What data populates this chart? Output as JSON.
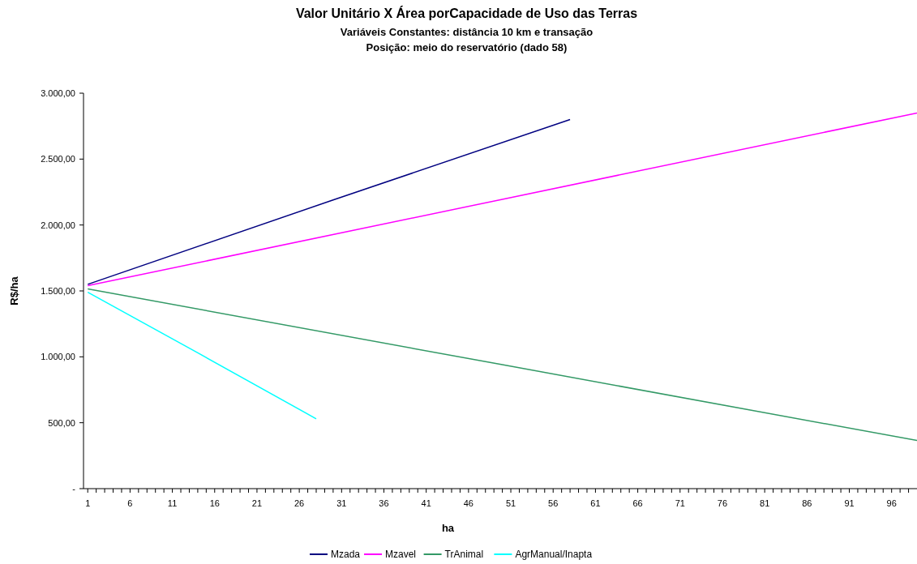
{
  "chart_data": {
    "type": "line",
    "title": "Valor Unitário X Área porCapacidade de Uso das Terras",
    "subtitle": "Variáveis Constantes: distância 10 km e transação\nPosição: meio do reservatório (dado 58)",
    "xlabel": "ha",
    "ylabel": "R$/ha",
    "xlim": [
      0.5,
      99
    ],
    "ylim": [
      0,
      3000
    ],
    "yticks": [
      {
        "value": 0,
        "label": "-"
      },
      {
        "value": 500,
        "label": "500,00"
      },
      {
        "value": 1000,
        "label": "1.000,00"
      },
      {
        "value": 1500,
        "label": "1.500,00"
      },
      {
        "value": 2000,
        "label": "2.000,00"
      },
      {
        "value": 2500,
        "label": "2.500,00"
      },
      {
        "value": 3000,
        "label": "3.000,00"
      }
    ],
    "xticks": [
      1,
      {
        "value": 2,
        "label": null
      },
      {
        "value": 3,
        "label": null
      },
      {
        "value": 4,
        "label": null
      },
      {
        "value": 5,
        "label": null
      },
      6,
      {
        "value": 7,
        "label": null
      },
      {
        "value": 8,
        "label": null
      },
      {
        "value": 9,
        "label": null
      },
      {
        "value": 10,
        "label": null
      },
      11,
      {
        "value": 12,
        "label": null
      },
      {
        "value": 13,
        "label": null
      },
      {
        "value": 14,
        "label": null
      },
      {
        "value": 15,
        "label": null
      },
      16,
      {
        "value": 17,
        "label": null
      },
      {
        "value": 18,
        "label": null
      },
      {
        "value": 19,
        "label": null
      },
      {
        "value": 20,
        "label": null
      },
      21,
      {
        "value": 22,
        "label": null
      },
      {
        "value": 23,
        "label": null
      },
      {
        "value": 24,
        "label": null
      },
      {
        "value": 25,
        "label": null
      },
      26,
      {
        "value": 27,
        "label": null
      },
      {
        "value": 28,
        "label": null
      },
      {
        "value": 29,
        "label": null
      },
      {
        "value": 30,
        "label": null
      },
      31,
      {
        "value": 32,
        "label": null
      },
      {
        "value": 33,
        "label": null
      },
      {
        "value": 34,
        "label": null
      },
      {
        "value": 35,
        "label": null
      },
      36,
      {
        "value": 37,
        "label": null
      },
      {
        "value": 38,
        "label": null
      },
      {
        "value": 39,
        "label": null
      },
      {
        "value": 40,
        "label": null
      },
      41,
      {
        "value": 42,
        "label": null
      },
      {
        "value": 43,
        "label": null
      },
      {
        "value": 44,
        "label": null
      },
      {
        "value": 45,
        "label": null
      },
      46,
      {
        "value": 47,
        "label": null
      },
      {
        "value": 48,
        "label": null
      },
      {
        "value": 49,
        "label": null
      },
      {
        "value": 50,
        "label": null
      },
      51,
      {
        "value": 52,
        "label": null
      },
      {
        "value": 53,
        "label": null
      },
      {
        "value": 54,
        "label": null
      },
      {
        "value": 55,
        "label": null
      },
      56,
      {
        "value": 57,
        "label": null
      },
      {
        "value": 58,
        "label": null
      },
      {
        "value": 59,
        "label": null
      },
      {
        "value": 60,
        "label": null
      },
      61,
      {
        "value": 62,
        "label": null
      },
      {
        "value": 63,
        "label": null
      },
      {
        "value": 64,
        "label": null
      },
      {
        "value": 65,
        "label": null
      },
      66,
      {
        "value": 67,
        "label": null
      },
      {
        "value": 68,
        "label": null
      },
      {
        "value": 69,
        "label": null
      },
      {
        "value": 70,
        "label": null
      },
      71,
      {
        "value": 72,
        "label": null
      },
      {
        "value": 73,
        "label": null
      },
      {
        "value": 74,
        "label": null
      },
      {
        "value": 75,
        "label": null
      },
      76,
      {
        "value": 77,
        "label": null
      },
      {
        "value": 78,
        "label": null
      },
      {
        "value": 79,
        "label": null
      },
      {
        "value": 80,
        "label": null
      },
      81,
      {
        "value": 82,
        "label": null
      },
      {
        "value": 83,
        "label": null
      },
      {
        "value": 84,
        "label": null
      },
      {
        "value": 85,
        "label": null
      },
      86,
      {
        "value": 87,
        "label": null
      },
      {
        "value": 88,
        "label": null
      },
      {
        "value": 89,
        "label": null
      },
      {
        "value": 90,
        "label": null
      },
      91,
      {
        "value": 92,
        "label": null
      },
      {
        "value": 93,
        "label": null
      },
      {
        "value": 94,
        "label": null
      },
      {
        "value": 95,
        "label": null
      },
      96,
      {
        "value": 97,
        "label": null
      },
      {
        "value": 98,
        "label": null
      }
    ],
    "legend": "bottom",
    "marker": "none",
    "line_style": "solid",
    "series": [
      {
        "name": "Mzada",
        "color": "#000080",
        "x": [
          1,
          30,
          58
        ],
        "values": [
          1550,
          2190,
          2800
        ]
      },
      {
        "name": "Mzavel",
        "color": "#ff00ff",
        "x": [
          1,
          50,
          99
        ],
        "values": [
          1540,
          2195,
          2850
        ]
      },
      {
        "name": "TrAnimal",
        "color": "#339966",
        "x": [
          1,
          50,
          99
        ],
        "values": [
          1515,
          940,
          365
        ]
      },
      {
        "name": "AgrManual/Inapta",
        "color": "#00ffff",
        "x": [
          1,
          14,
          28
        ],
        "values": [
          1490,
          1030,
          530
        ]
      }
    ]
  }
}
